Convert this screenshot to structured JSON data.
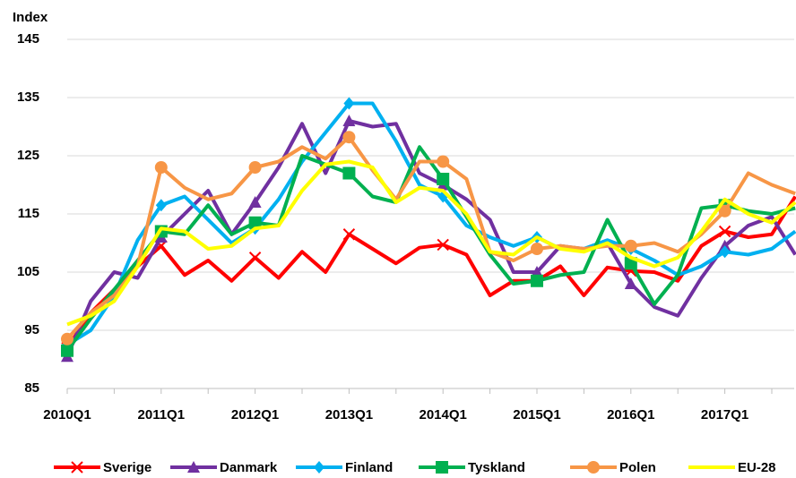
{
  "chart_data": {
    "type": "line",
    "y_label": "Index",
    "categories": [
      "2010Q1",
      null,
      null,
      null,
      "2011Q1",
      null,
      null,
      null,
      "2012Q1",
      null,
      null,
      null,
      "2013Q1",
      null,
      null,
      null,
      "2014Q1",
      null,
      null,
      null,
      "2015Q1",
      null,
      null,
      null,
      "2016Q1",
      null,
      null,
      null,
      "2017Q1",
      null,
      null,
      null
    ],
    "ylim": [
      85,
      145
    ],
    "yticks": [
      85,
      95,
      105,
      115,
      125,
      135,
      145
    ],
    "grid": true,
    "legend": "bottom",
    "series": [
      {
        "name": "Sverige",
        "color": "#ff0000",
        "marker": "x",
        "values": [
          92,
          98,
          102,
          106,
          109.5,
          104.5,
          107,
          103.5,
          107.5,
          104,
          108.5,
          105,
          111.5,
          109,
          106.5,
          109.2,
          109.7,
          108,
          101,
          103.5,
          103.5,
          106,
          101,
          105.8,
          105.2,
          105,
          103.5,
          109.5,
          112,
          111,
          111.5,
          118
        ]
      },
      {
        "name": "Danmark",
        "color": "#7030a0",
        "marker": "triangle",
        "values": [
          90.5,
          100,
          105,
          104,
          111,
          115,
          119,
          111.5,
          117,
          123,
          130.5,
          122,
          131,
          130,
          130.5,
          122,
          120,
          117.5,
          114,
          105,
          105,
          109.5,
          109,
          110,
          103,
          99,
          97.5,
          104,
          109.5,
          113,
          114.5,
          108
        ]
      },
      {
        "name": "Finland",
        "color": "#00b0f0",
        "marker": "diamond",
        "values": [
          92.5,
          95,
          101,
          110.5,
          116.5,
          118,
          114,
          110,
          112.5,
          117.5,
          124,
          129,
          134,
          134,
          127.5,
          120,
          118,
          113,
          111,
          109.5,
          111,
          109,
          109,
          110.5,
          109,
          107,
          104.5,
          106,
          108.5,
          108,
          109,
          112
        ]
      },
      {
        "name": "Tyskland",
        "color": "#00b050",
        "marker": "square",
        "values": [
          91.5,
          97,
          102,
          107,
          112,
          111.5,
          116.5,
          111.5,
          113.5,
          113,
          125,
          123.5,
          122,
          118,
          117,
          126.5,
          121,
          114.5,
          108,
          103,
          103.5,
          104.5,
          105,
          114,
          106.5,
          99.5,
          104.5,
          116,
          116.5,
          115.5,
          115,
          116
        ]
      },
      {
        "name": "Polen",
        "color": "#f79646",
        "marker": "circle",
        "values": [
          93.5,
          98,
          101,
          106,
          123,
          119.5,
          117.5,
          118.5,
          123,
          124,
          126.5,
          124.5,
          128.2,
          122.5,
          117.5,
          124,
          124,
          121,
          108.5,
          107,
          109,
          109.5,
          109,
          109.5,
          109.5,
          110,
          108.5,
          111.5,
          115.5,
          122,
          120,
          118.5
        ]
      },
      {
        "name": "EU-28",
        "color": "#ffff00",
        "marker": "none",
        "values": [
          96,
          97.5,
          100,
          106,
          112.5,
          112,
          109,
          109.5,
          112.5,
          113,
          119,
          123.5,
          124,
          123,
          117,
          119.5,
          119,
          115,
          108.5,
          108,
          111,
          109,
          108.5,
          110,
          107.5,
          106,
          107.5,
          112,
          117.5,
          115,
          113.5,
          117
        ]
      }
    ]
  }
}
